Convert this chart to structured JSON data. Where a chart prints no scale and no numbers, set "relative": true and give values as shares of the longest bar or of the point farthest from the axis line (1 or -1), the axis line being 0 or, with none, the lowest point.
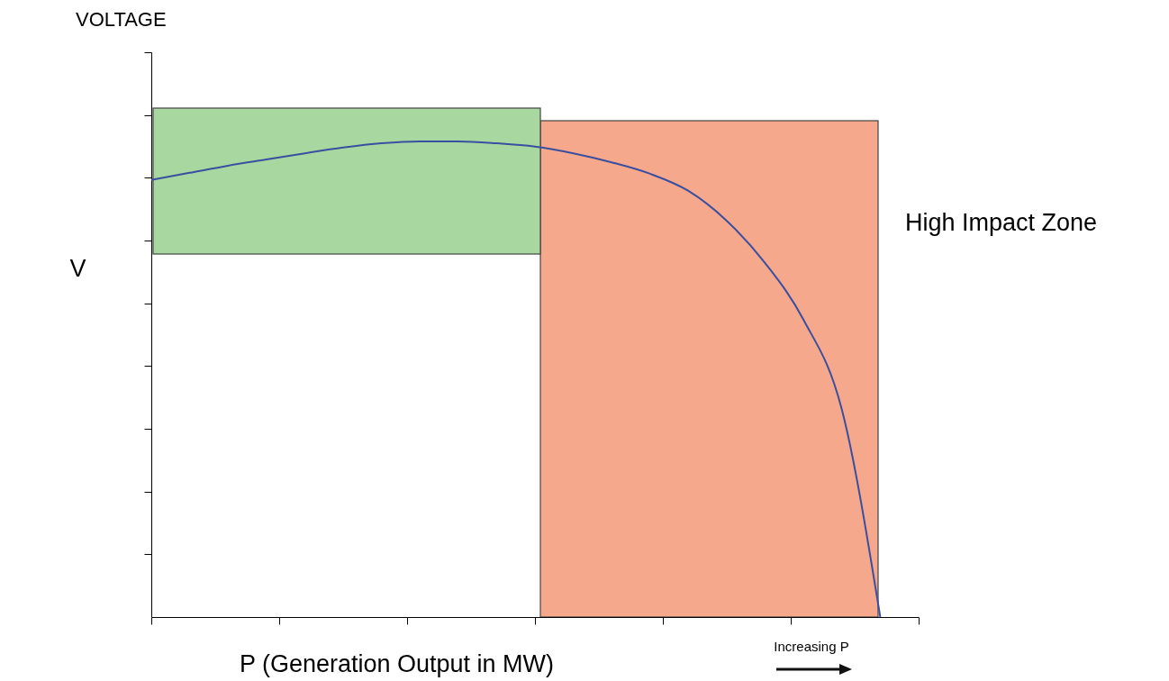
{
  "chart_data": {
    "type": "line",
    "title": "VOLTAGE",
    "xlabel": "P (Generation Output in MW)",
    "ylabel": "V",
    "relative": true,
    "categories": [
      null,
      null,
      null,
      null,
      null,
      null,
      null,
      null,
      null,
      null,
      null,
      null,
      null,
      null,
      null,
      null,
      null,
      null,
      null,
      null,
      null
    ],
    "series": [
      {
        "color": "#3a4fa0",
        "values": [
          0.919,
          0.934,
          0.949,
          0.962,
          0.975,
          0.987,
          0.996,
          1,
          1,
          0.996,
          0.989,
          0.975,
          0.956,
          0.932,
          0.896,
          0.833,
          0.744,
          0.625,
          0.436,
          0,
          null
        ]
      }
    ],
    "annotations": [
      "High Impact Zone",
      "Increasing P"
    ],
    "marker": "none",
    "line_style": "solid"
  }
}
